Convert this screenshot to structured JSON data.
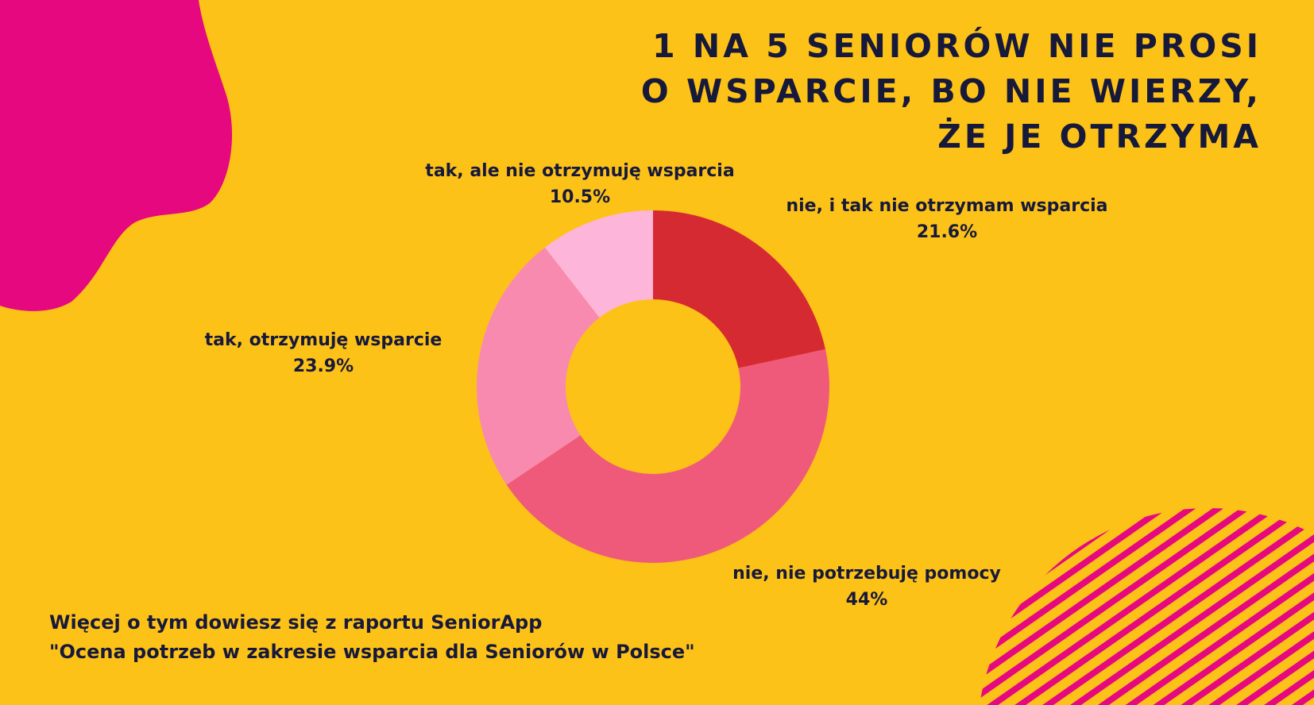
{
  "title": {
    "line1": "1 NA 5 SENIORÓW NIE PROSI",
    "line2": "O WSPARCIE, BO NIE WIERZY,",
    "line3": "ŻE JE OTRZYMA"
  },
  "source": {
    "line1": "Więcej o tym dowiesz się z raportu SeniorApp",
    "line2": "\"Ocena potrzeb w zakresie wsparcia dla Seniorów w Polsce\""
  },
  "colors": {
    "background": "#FDC217",
    "blob": "#E5087F",
    "stripes": "#E5087F",
    "text": "#17193B"
  },
  "chart_data": {
    "type": "pie",
    "donut": true,
    "slices": [
      {
        "label": "nie, i tak nie otrzymam wsparcia",
        "value": 21.6,
        "display": "21.6%",
        "color": "#D62A33"
      },
      {
        "label": "nie, nie potrzebuję pomocy",
        "value": 44,
        "display": "44%",
        "color": "#F05A7A"
      },
      {
        "label": "tak, otrzymuję wsparcie",
        "value": 23.9,
        "display": "23.9%",
        "color": "#F88AB0"
      },
      {
        "label": "tak, ale nie otrzymuję wsparcia",
        "value": 10.5,
        "display": "10.5%",
        "color": "#FDB5DA"
      }
    ]
  }
}
